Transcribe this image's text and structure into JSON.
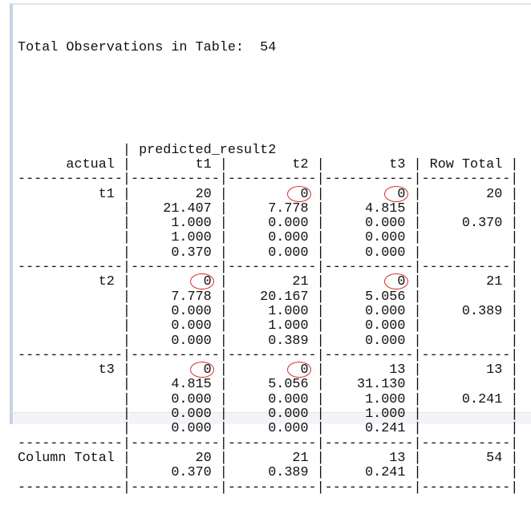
{
  "header": {
    "total_label": "Total Observations in Table:",
    "total_value": "54"
  },
  "table": {
    "col_variable": "predicted_result2",
    "row_variable": "actual",
    "columns": [
      "t1",
      "t2",
      "t3"
    ],
    "row_total_label": "Row Total",
    "column_total_label": "Column Total",
    "rows": [
      {
        "label": "t1",
        "cells": [
          [
            "20",
            "21.407",
            "1.000",
            "1.000",
            "0.370"
          ],
          [
            "0",
            "7.778",
            "0.000",
            "0.000",
            "0.000"
          ],
          [
            "0",
            "4.815",
            "0.000",
            "0.000",
            "0.000"
          ]
        ],
        "total": [
          "20",
          "",
          "0.370"
        ]
      },
      {
        "label": "t2",
        "cells": [
          [
            "0",
            "7.778",
            "0.000",
            "0.000",
            "0.000"
          ],
          [
            "21",
            "20.167",
            "1.000",
            "1.000",
            "0.389"
          ],
          [
            "0",
            "5.056",
            "0.000",
            "0.000",
            "0.000"
          ]
        ],
        "total": [
          "21",
          "",
          "0.389"
        ]
      },
      {
        "label": "t3",
        "cells": [
          [
            "0",
            "4.815",
            "0.000",
            "0.000",
            "0.000"
          ],
          [
            "0",
            "5.056",
            "0.000",
            "0.000",
            "0.000"
          ],
          [
            "13",
            "31.130",
            "1.000",
            "1.000",
            "0.241"
          ]
        ],
        "total": [
          "13",
          "",
          "0.241"
        ]
      }
    ],
    "column_totals": [
      [
        "20",
        "0.370"
      ],
      [
        "21",
        "0.389"
      ],
      [
        "13",
        "0.241"
      ]
    ],
    "grand_total": "54"
  },
  "highlighted_cells": [
    {
      "row": 0,
      "col": 1
    },
    {
      "row": 0,
      "col": 2
    },
    {
      "row": 1,
      "col": 0
    },
    {
      "row": 1,
      "col": 2
    },
    {
      "row": 2,
      "col": 0
    },
    {
      "row": 2,
      "col": 1
    }
  ],
  "colors": {
    "highlight": "#d42a2a",
    "frame": "#c9d3e6"
  }
}
